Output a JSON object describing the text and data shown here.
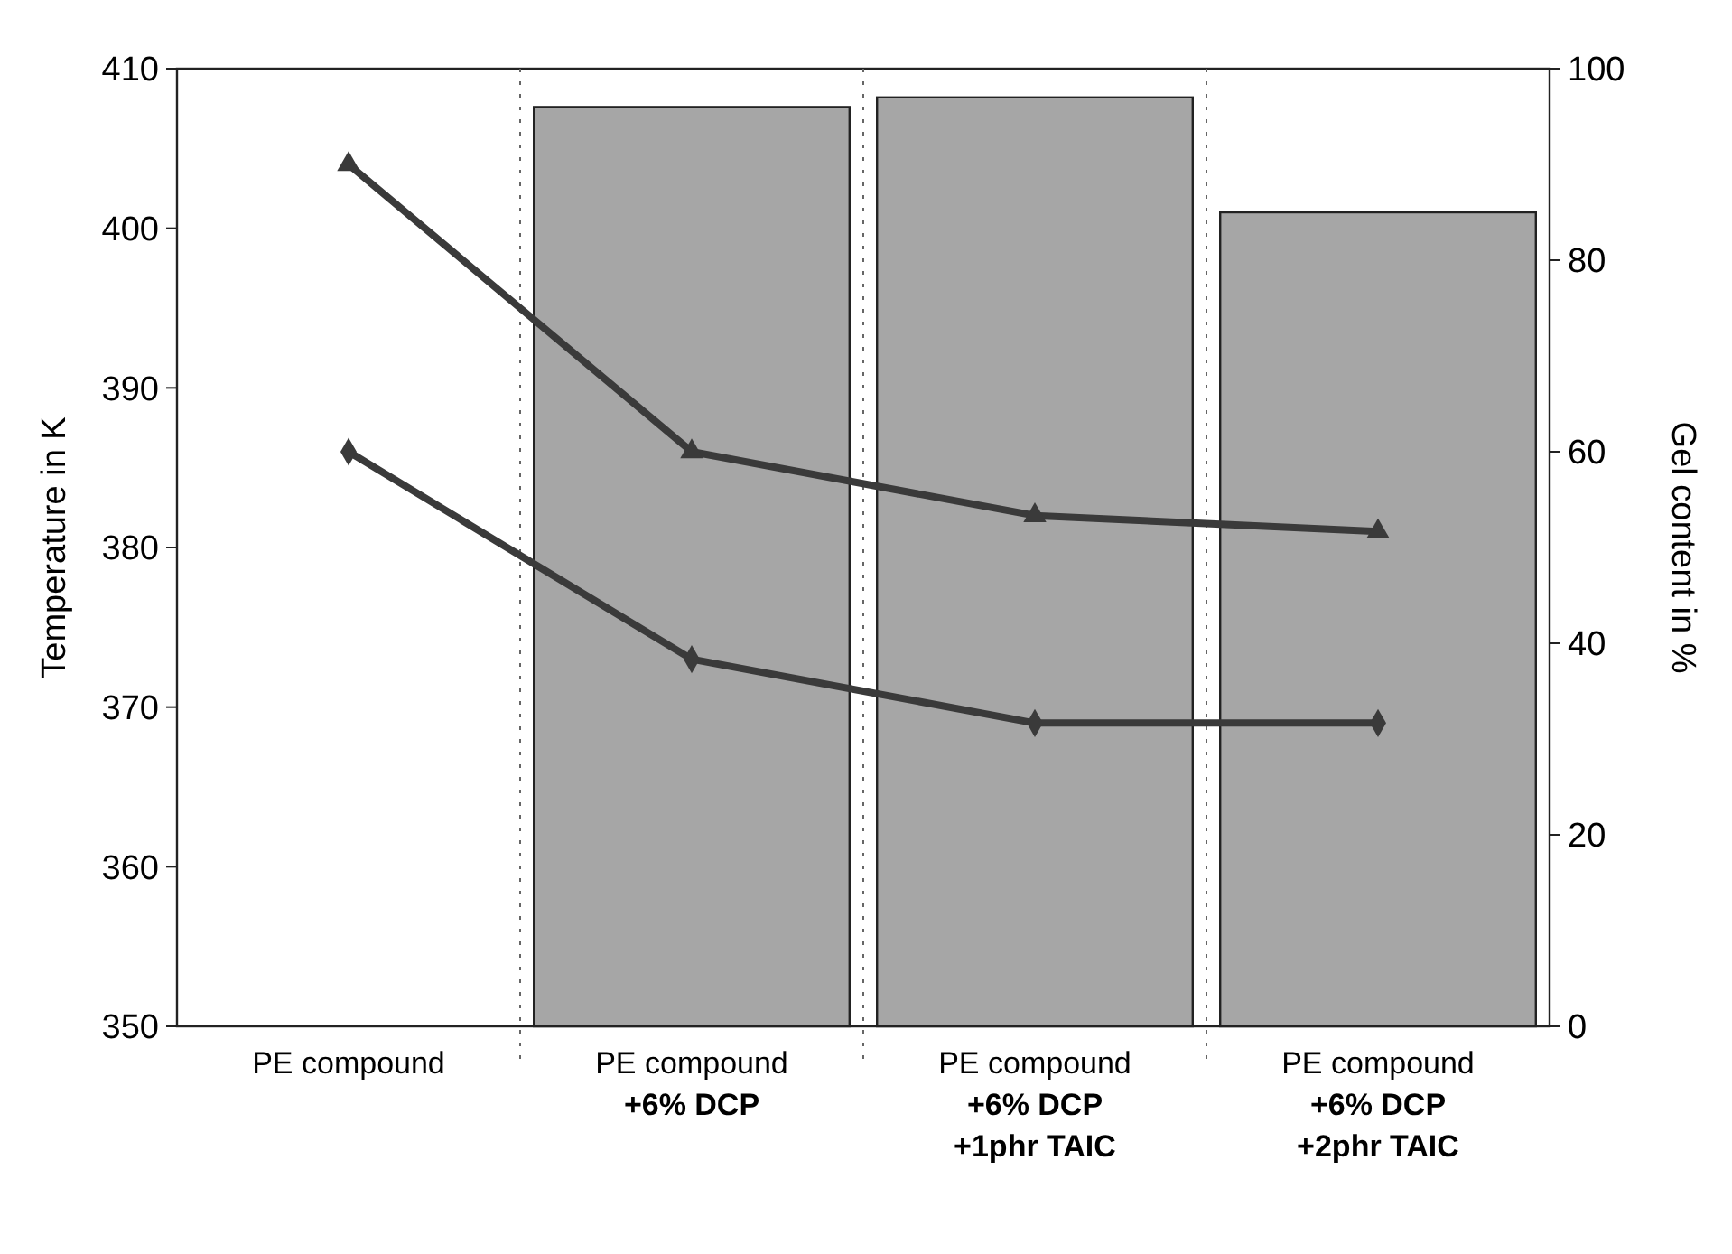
{
  "chart_data": {
    "type": "bar",
    "categories": [
      "PE compound",
      "PE compound\n+6% DCP",
      "PE compound\n+6% DCP\n+1phr TAIC",
      "PE compound\n+6% DCP\n+2phr TAIC"
    ],
    "series": [
      {
        "axis": "y2",
        "color": "#a6a6a6",
        "values": [
          null,
          96,
          97,
          85
        ]
      },
      {
        "type": "line",
        "color": "#3a3a3a",
        "marker": "triangle",
        "values": [
          404,
          386,
          382,
          381
        ]
      },
      {
        "type": "line",
        "color": "#3a3a3a",
        "marker": "diamond",
        "values": [
          386,
          373,
          369,
          369
        ]
      }
    ],
    "ylabel": "Temperature in K",
    "y2label": "Gel content in %",
    "ylim": [
      350,
      410
    ],
    "yticks": [
      350,
      360,
      370,
      380,
      390,
      400,
      410
    ],
    "y2lim": [
      0,
      100
    ],
    "y2ticks": [
      0,
      20,
      40,
      60,
      80,
      100
    ],
    "grid": "x"
  }
}
